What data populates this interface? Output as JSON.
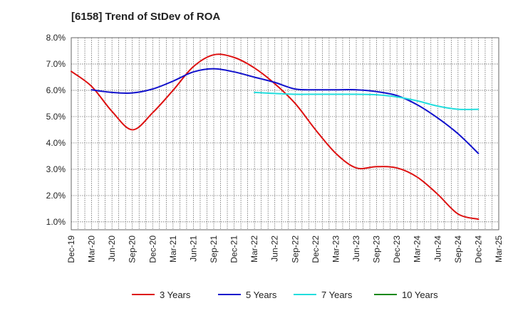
{
  "chart_data": {
    "type": "line",
    "title": "[6158]  Trend of StDev of ROA",
    "xlabel": "",
    "ylabel": "",
    "x": [
      "Dec-19",
      "Mar-20",
      "Jun-20",
      "Sep-20",
      "Dec-20",
      "Mar-21",
      "Jun-21",
      "Sep-21",
      "Dec-21",
      "Mar-22",
      "Jun-22",
      "Sep-22",
      "Dec-22",
      "Mar-23",
      "Jun-23",
      "Sep-23",
      "Dec-23",
      "Mar-24",
      "Jun-24",
      "Sep-24",
      "Dec-24",
      "Mar-25"
    ],
    "y_ticks": [
      "1.0%",
      "2.0%",
      "3.0%",
      "4.0%",
      "5.0%",
      "6.0%",
      "7.0%",
      "8.0%"
    ],
    "ylim": [
      0.7,
      8.0
    ],
    "grid": true,
    "legend_position": "bottom",
    "series": [
      {
        "name": "3 Years",
        "color": "#dd1111",
        "values": [
          6.72,
          6.15,
          5.2,
          4.5,
          5.15,
          6.0,
          6.9,
          7.35,
          7.25,
          6.85,
          6.25,
          5.5,
          4.5,
          3.6,
          3.05,
          3.1,
          3.05,
          2.7,
          2.05,
          1.3,
          1.1,
          null
        ]
      },
      {
        "name": "5 Years",
        "color": "#1111cc",
        "values": [
          null,
          6.02,
          5.92,
          5.9,
          6.05,
          6.35,
          6.7,
          6.82,
          6.7,
          6.5,
          6.3,
          6.05,
          6.02,
          6.02,
          6.02,
          5.95,
          5.8,
          5.45,
          4.95,
          4.35,
          3.6,
          null
        ]
      },
      {
        "name": "7 Years",
        "color": "#22dddd",
        "values": [
          null,
          null,
          null,
          null,
          null,
          null,
          null,
          null,
          null,
          5.92,
          5.88,
          5.85,
          5.85,
          5.85,
          5.85,
          5.83,
          5.75,
          5.6,
          5.4,
          5.28,
          5.28,
          null
        ]
      },
      {
        "name": "10 Years",
        "color": "#118811",
        "values": [
          null,
          null,
          null,
          null,
          null,
          null,
          null,
          null,
          null,
          null,
          null,
          null,
          null,
          null,
          null,
          null,
          null,
          null,
          null,
          null,
          null,
          null
        ]
      }
    ]
  }
}
